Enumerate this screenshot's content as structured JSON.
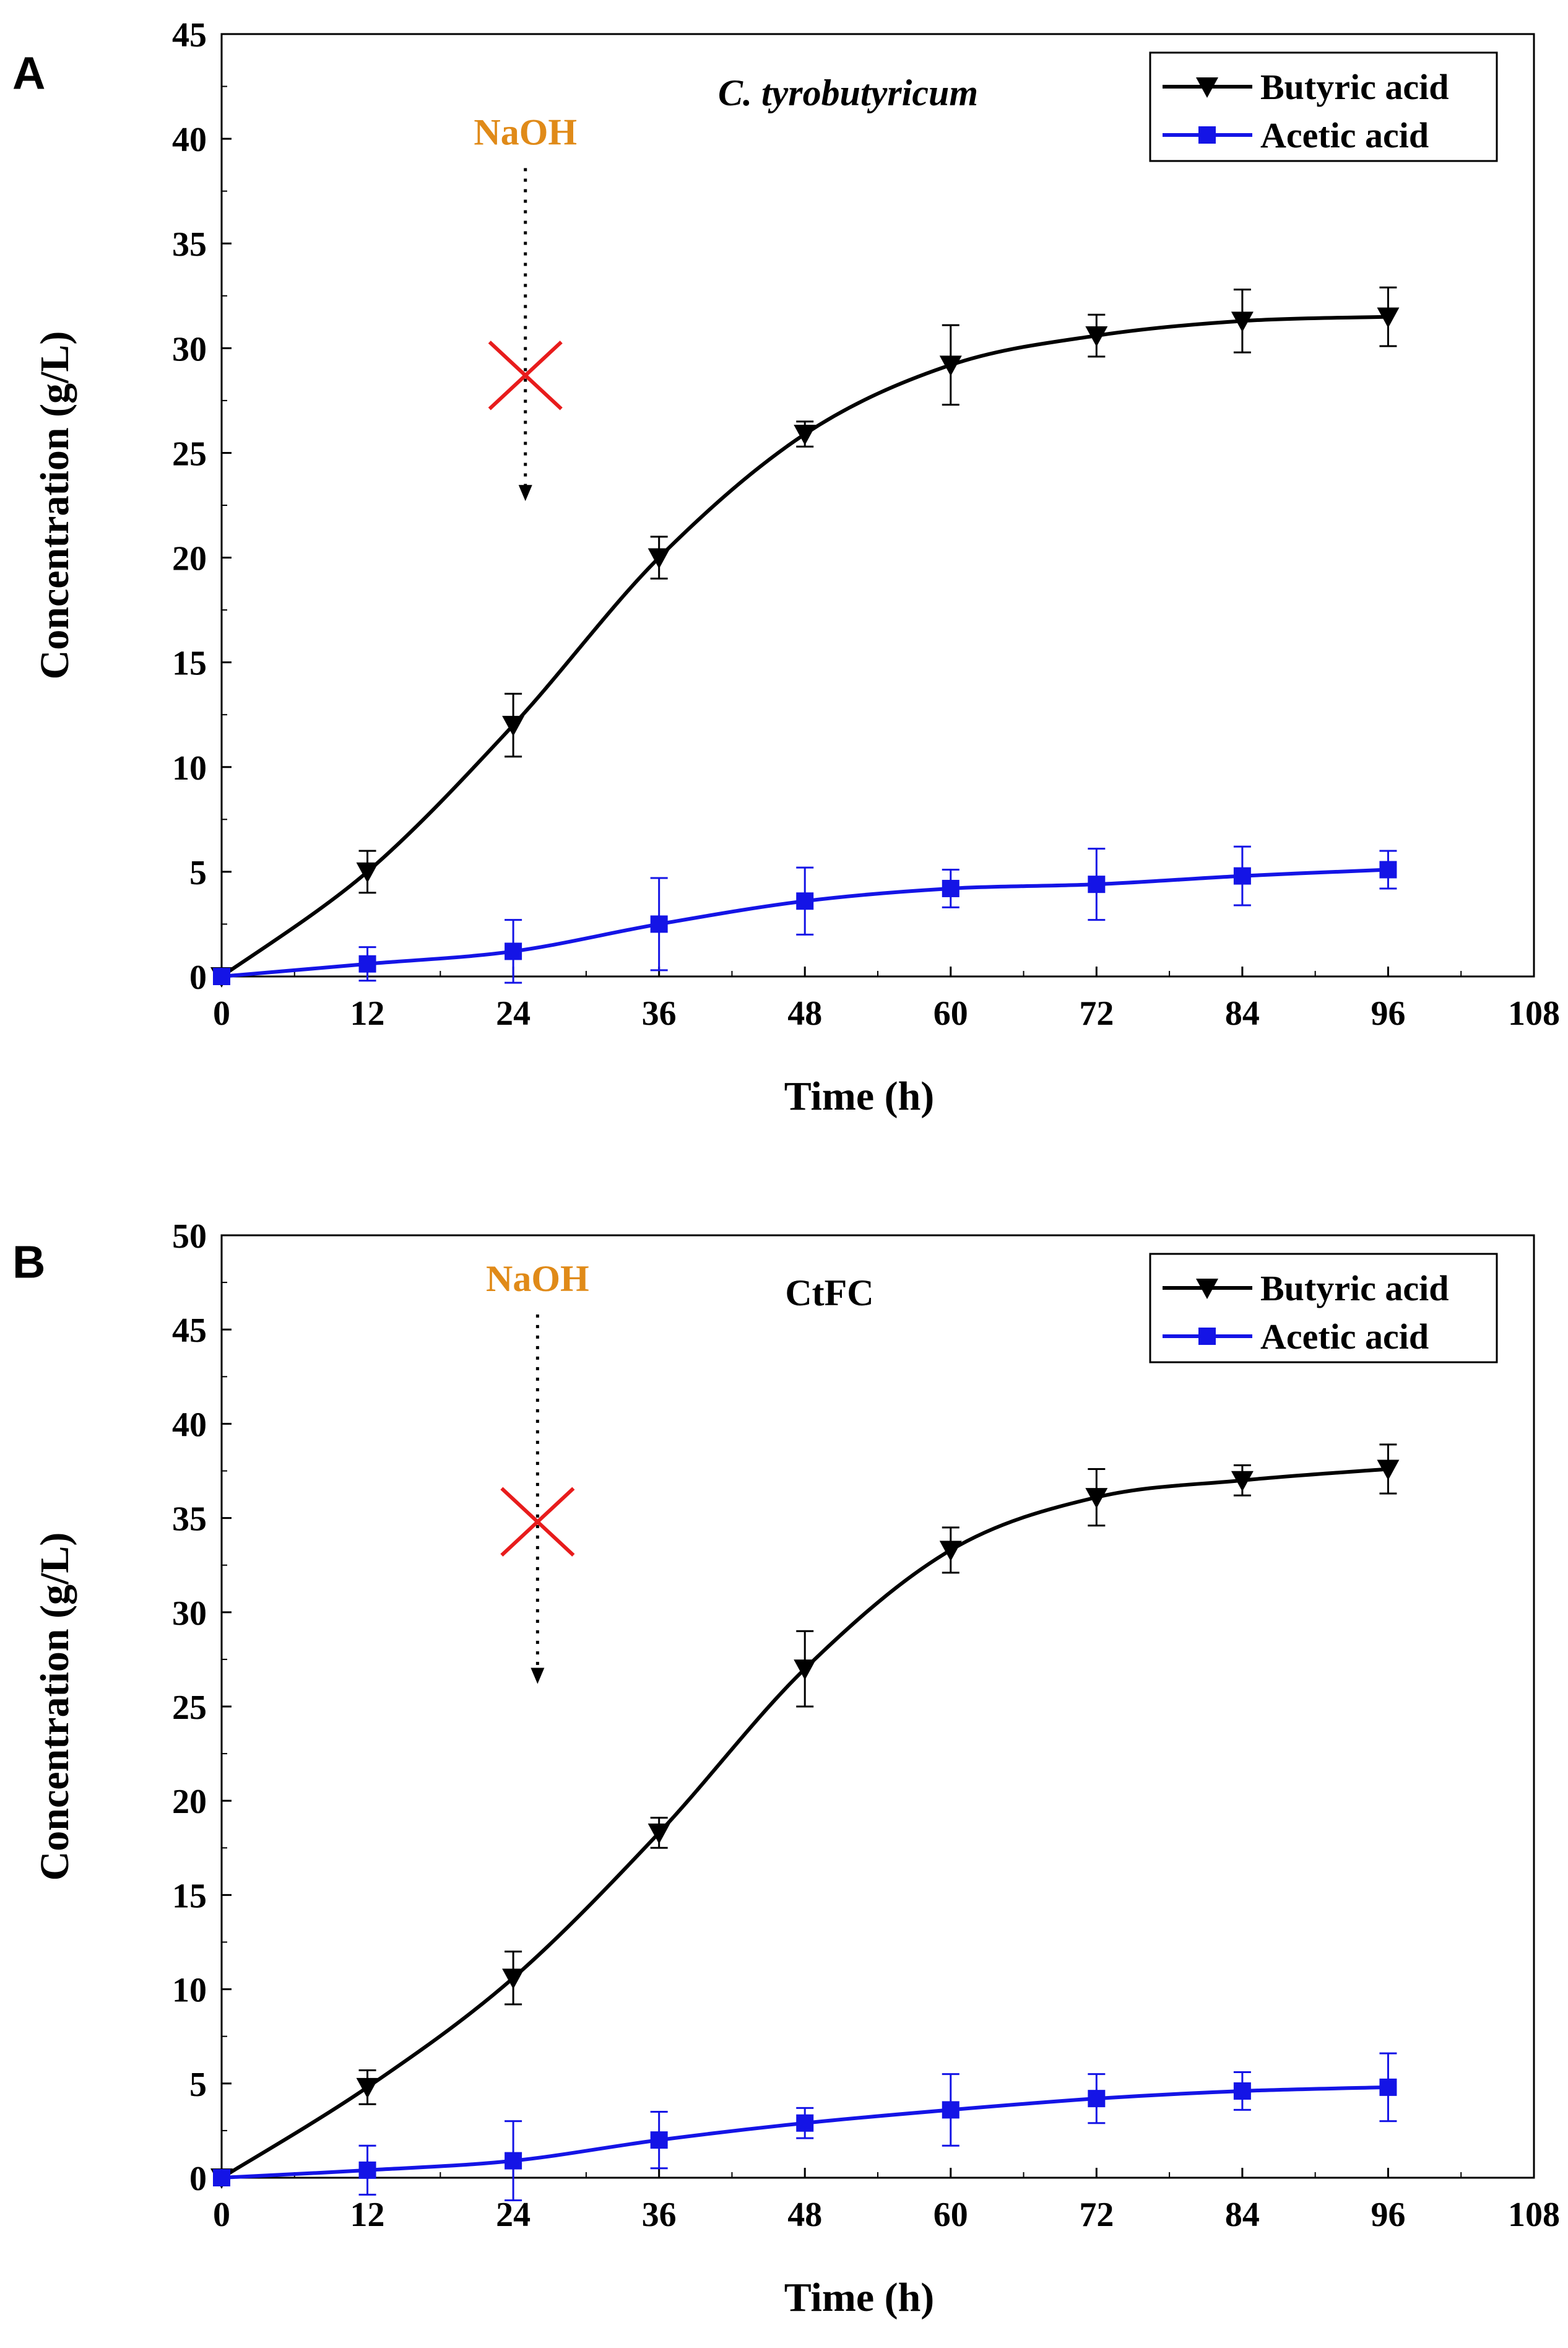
{
  "colors": {
    "butyric": "#000000",
    "acetic": "#1414e6",
    "naoh_text": "#e08a18",
    "cross": "#e81c1c",
    "axis": "#000000",
    "background": "#ffffff"
  },
  "chart_data": [
    {
      "type": "line",
      "panel_label": "A",
      "title": "C. tyrobutyricum",
      "title_italic": true,
      "xlabel": "Time (h)",
      "ylabel": "Concentration (g/L)",
      "xlim": [
        0,
        108
      ],
      "ylim": [
        0,
        45
      ],
      "xticks": [
        0,
        12,
        24,
        36,
        48,
        60,
        72,
        84,
        96,
        108
      ],
      "yticks": [
        0,
        5,
        10,
        15,
        20,
        25,
        30,
        35,
        40,
        45
      ],
      "grid": false,
      "legend_position": "top-right",
      "annotation": {
        "text": "NaOH",
        "arrow_x": 25,
        "arrow_from_y": 38.6,
        "arrow_to_y": 22.7,
        "cross_y": 28.7
      },
      "series": [
        {
          "name": "Butyric acid",
          "marker": "triangle-down",
          "color_key": "butyric",
          "x": [
            0,
            12,
            24,
            36,
            48,
            60,
            72,
            84,
            96
          ],
          "values": [
            0,
            5.0,
            12.0,
            20.0,
            25.9,
            29.2,
            30.6,
            31.3,
            31.5
          ],
          "errors": [
            0,
            1.0,
            1.5,
            1.0,
            0.6,
            1.9,
            1.0,
            1.5,
            1.4
          ]
        },
        {
          "name": "Acetic acid",
          "marker": "square",
          "color_key": "acetic",
          "x": [
            0,
            12,
            24,
            36,
            48,
            60,
            72,
            84,
            96
          ],
          "values": [
            0,
            0.6,
            1.2,
            2.5,
            3.6,
            4.2,
            4.4,
            4.8,
            5.1
          ],
          "errors": [
            0,
            0.8,
            1.5,
            2.2,
            1.6,
            0.9,
            1.7,
            1.4,
            0.9
          ]
        }
      ]
    },
    {
      "type": "line",
      "panel_label": "B",
      "title": "CtFC",
      "title_italic": false,
      "xlabel": "Time (h)",
      "ylabel": "Concentration (g/L)",
      "xlim": [
        0,
        108
      ],
      "ylim": [
        0,
        50
      ],
      "xticks": [
        0,
        12,
        24,
        36,
        48,
        60,
        72,
        84,
        96,
        108
      ],
      "yticks": [
        0,
        5,
        10,
        15,
        20,
        25,
        30,
        35,
        40,
        45,
        50
      ],
      "grid": false,
      "legend_position": "top-right",
      "annotation": {
        "text": "NaOH",
        "arrow_x": 26,
        "arrow_from_y": 45.8,
        "arrow_to_y": 26.2,
        "cross_y": 34.8
      },
      "series": [
        {
          "name": "Butyric acid",
          "marker": "triangle-down",
          "color_key": "butyric",
          "x": [
            0,
            12,
            24,
            36,
            48,
            60,
            72,
            84,
            96
          ],
          "values": [
            0,
            4.8,
            10.6,
            18.3,
            27.0,
            33.3,
            36.1,
            37.0,
            37.6
          ],
          "errors": [
            0,
            0.9,
            1.4,
            0.8,
            2.0,
            1.2,
            1.5,
            0.8,
            1.3
          ]
        },
        {
          "name": "Acetic acid",
          "marker": "square",
          "color_key": "acetic",
          "x": [
            0,
            12,
            24,
            36,
            48,
            60,
            72,
            84,
            96
          ],
          "values": [
            0,
            0.4,
            0.9,
            2.0,
            2.9,
            3.6,
            4.2,
            4.6,
            4.8
          ],
          "errors": [
            0,
            1.3,
            2.1,
            1.5,
            0.8,
            1.9,
            1.3,
            1.0,
            1.8
          ]
        }
      ]
    }
  ]
}
